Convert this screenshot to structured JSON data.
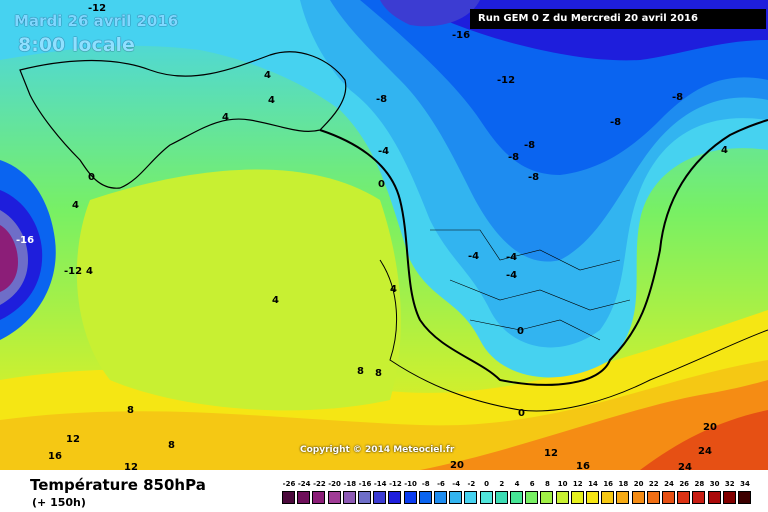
{
  "header": {
    "date": "Mardi 26 avril 2016",
    "time": "8:00 locale",
    "run": "Run GEM 0 Z du Mercredi 20 avril 2016"
  },
  "copyright": "Copyright © 2014 Meteociel.fr",
  "footer": {
    "title": "Température 850hPa",
    "subtitle": "(+ 150h)"
  },
  "isotherms": [
    {
      "label": "-12"
    },
    {
      "label": "-16"
    },
    {
      "label": "-12"
    },
    {
      "label": "-8"
    },
    {
      "label": "-8"
    },
    {
      "label": "-8"
    },
    {
      "label": "-8"
    },
    {
      "label": "-8"
    },
    {
      "label": "-8"
    },
    {
      "label": "-4"
    },
    {
      "label": "-4"
    },
    {
      "label": "-4"
    },
    {
      "label": "-4"
    },
    {
      "label": "0"
    },
    {
      "label": "0"
    },
    {
      "label": "0"
    },
    {
      "label": "4"
    },
    {
      "label": "4"
    },
    {
      "label": "4"
    },
    {
      "label": "4"
    },
    {
      "label": "4"
    },
    {
      "label": "4"
    },
    {
      "label": "4"
    },
    {
      "label": "-16"
    },
    {
      "label": "-12"
    },
    {
      "label": "8"
    },
    {
      "label": "8"
    },
    {
      "label": "8"
    },
    {
      "label": "8"
    },
    {
      "label": "12"
    },
    {
      "label": "12"
    },
    {
      "label": "12"
    },
    {
      "label": "16"
    },
    {
      "label": "16"
    },
    {
      "label": "20"
    },
    {
      "label": "20"
    },
    {
      "label": "24"
    },
    {
      "label": "24"
    },
    {
      "label": "0"
    },
    {
      "label": "4"
    }
  ],
  "legend": {
    "labels": [
      "-26",
      "-24",
      "-22",
      "-20",
      "-18",
      "-16",
      "-14",
      "-12",
      "-10",
      "-8",
      "-6",
      "-4",
      "-2",
      "0",
      "2",
      "4",
      "6",
      "8",
      "10",
      "12",
      "14",
      "16",
      "18",
      "20",
      "22",
      "24",
      "26",
      "28",
      "30",
      "32",
      "34"
    ],
    "colors": [
      "#4b0a3c",
      "#6e0f5a",
      "#8c1e78",
      "#a03c96",
      "#8c5ab4",
      "#6e6ec8",
      "#3c3cd2",
      "#1e1edc",
      "#0a3cf0",
      "#0a64f0",
      "#1e8cf0",
      "#32b4f0",
      "#46d2f0",
      "#50e6dc",
      "#3cdcb4",
      "#46e696",
      "#78f064",
      "#a0f046",
      "#c8f032",
      "#e6f01e",
      "#f5e614",
      "#f5c814",
      "#f5aa14",
      "#f58c14",
      "#f06e14",
      "#e65014",
      "#dc3214",
      "#c81e14",
      "#aa0a0a",
      "#820000",
      "#3c0000"
    ]
  },
  "colors": {
    "deep_cold": "#1e1edc",
    "cold": "#0a64f0",
    "mild": "#46e696",
    "warm": "#f5c814",
    "hot": "#e65014"
  }
}
